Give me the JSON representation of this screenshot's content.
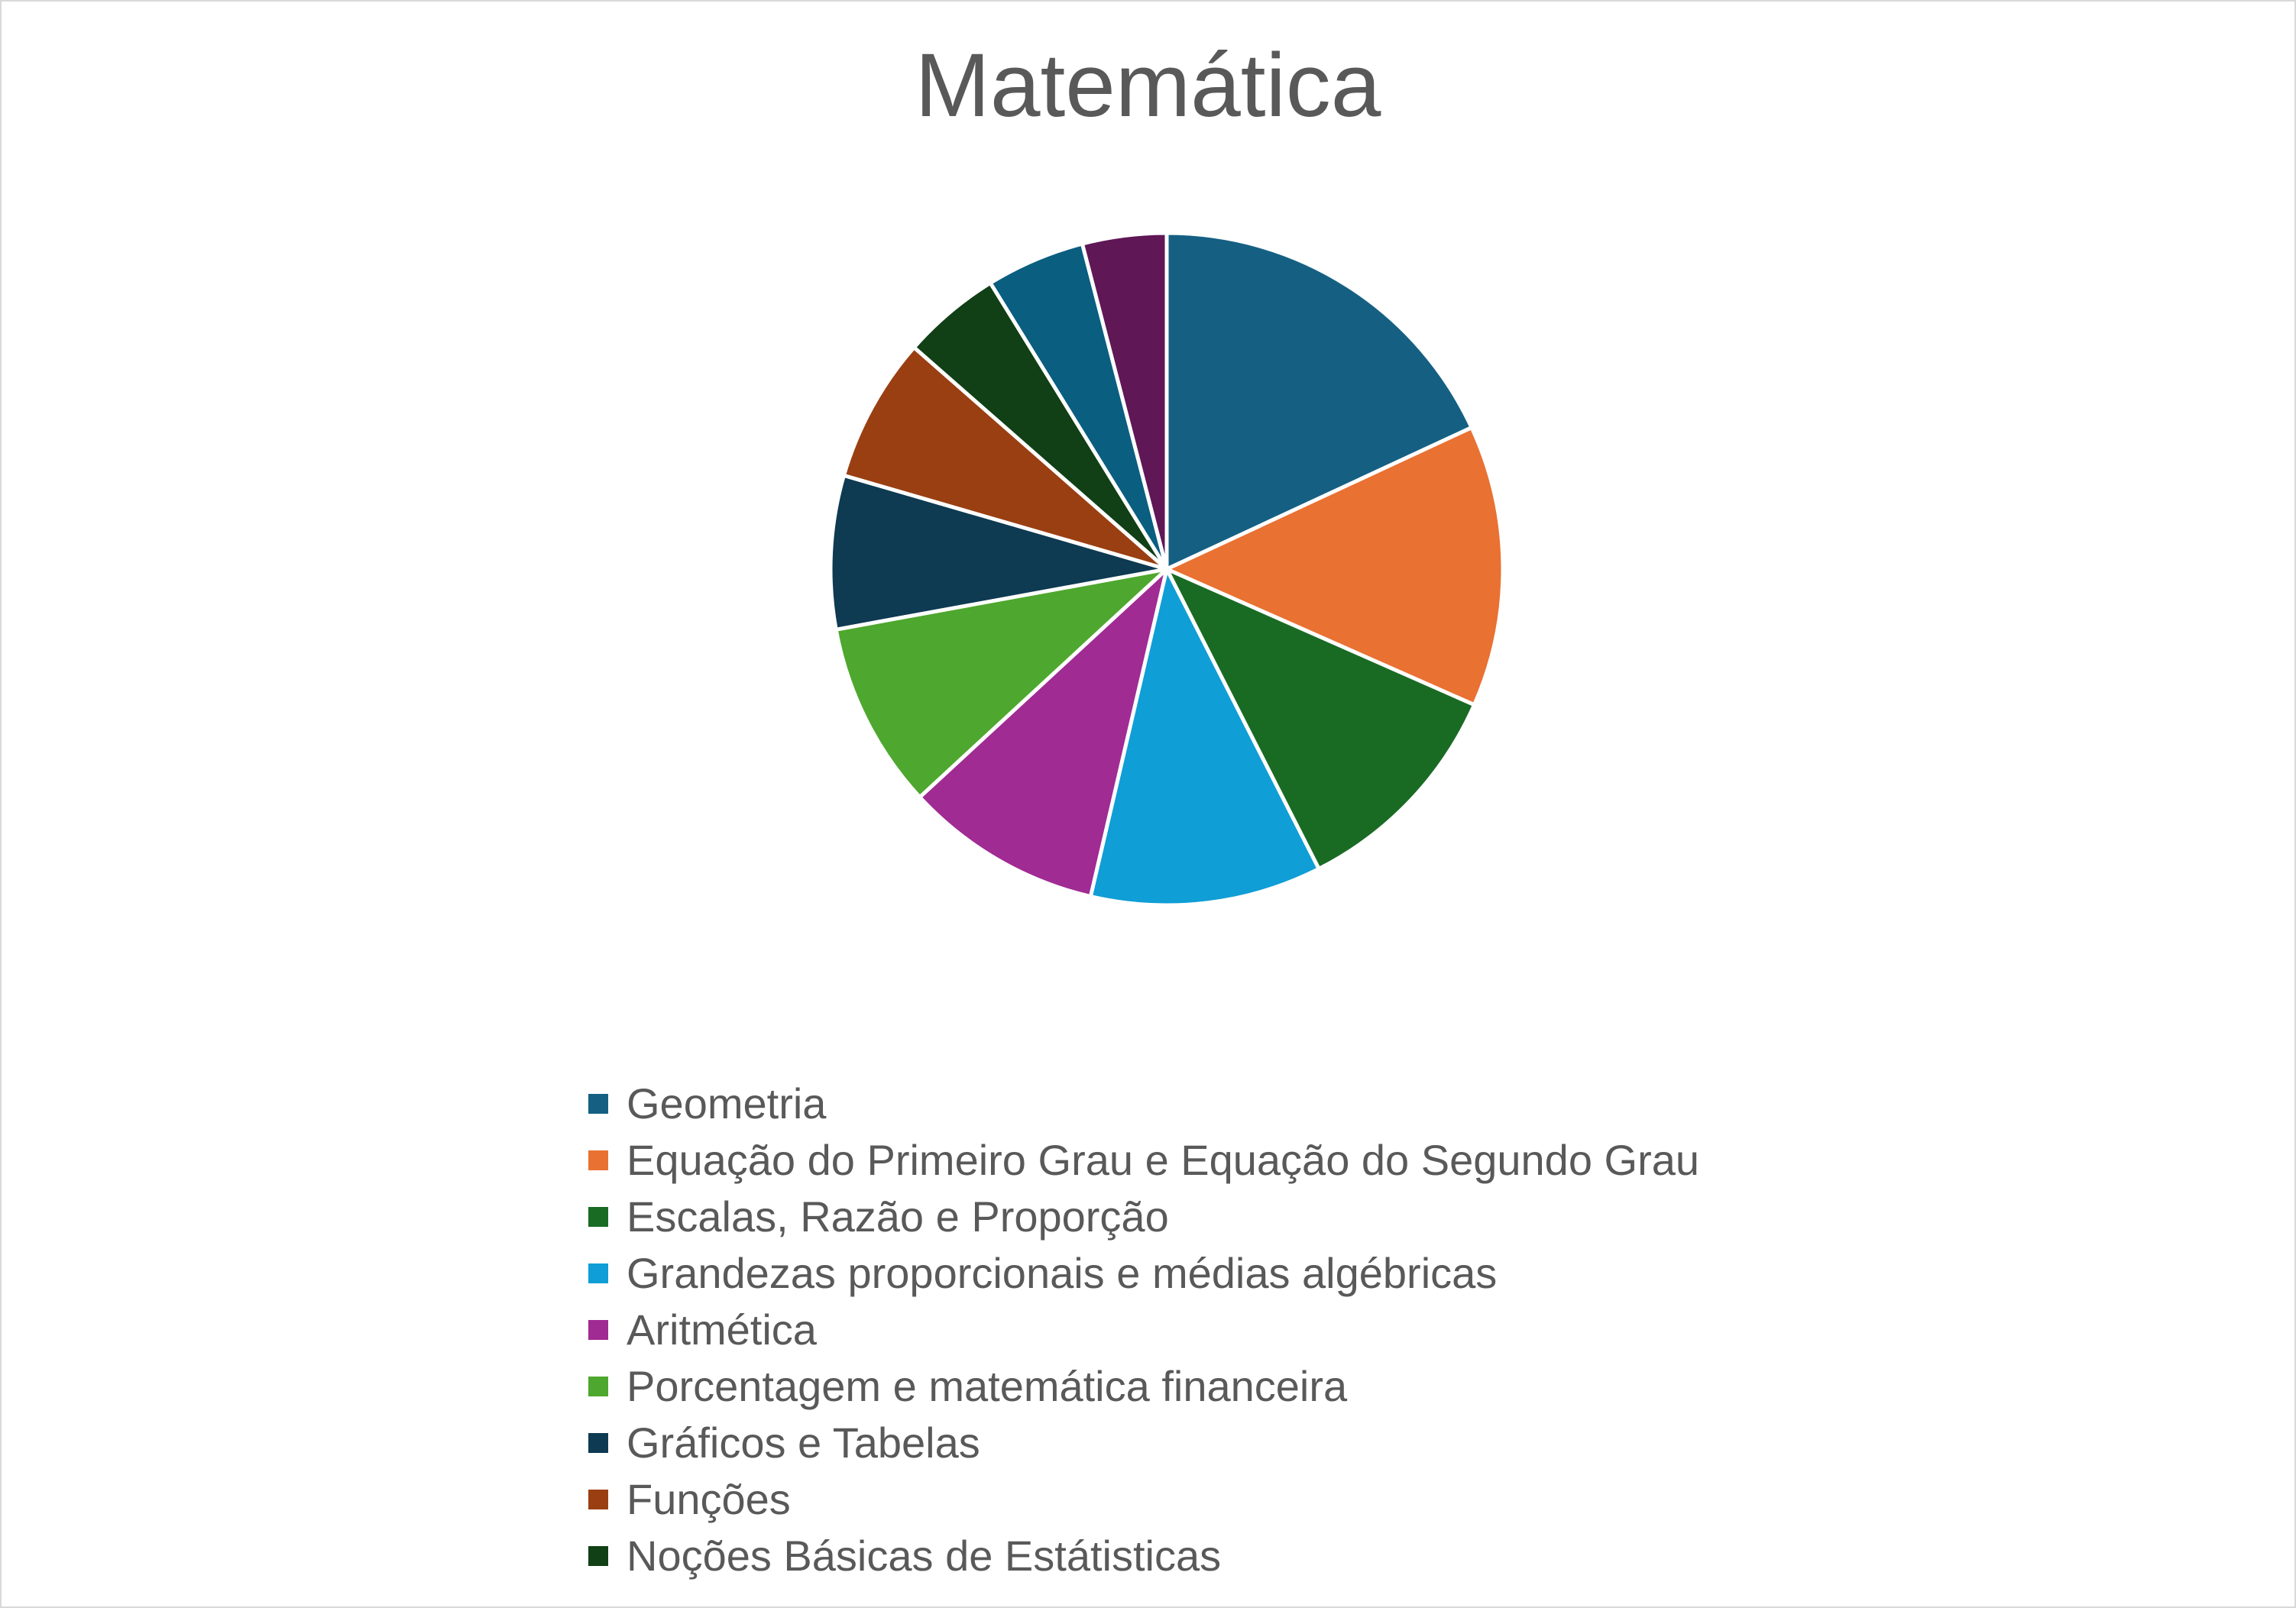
{
  "chart_data": {
    "type": "pie",
    "title": "Matemática",
    "legend_position": "bottom",
    "slices": [
      {
        "label": "Geometria",
        "value": 17.9,
        "color": "#156082"
      },
      {
        "label": "Equação do Primeiro Grau e Equação do Segundo Grau",
        "value": 13.4,
        "color": "#E97132"
      },
      {
        "label": "Escalas, Razão e Proporção",
        "value": 10.8,
        "color": "#196B24"
      },
      {
        "label": "Grandezas proporcionais e médias algébricas",
        "value": 11.0,
        "color": "#0F9ED5"
      },
      {
        "label": "Aritmética",
        "value": 9.4,
        "color": "#A02B93"
      },
      {
        "label": "Porcentagem e matemática financeira",
        "value": 8.9,
        "color": "#4EA72E"
      },
      {
        "label": "Gráficos e Tabelas",
        "value": 7.3,
        "color": "#0E3A52"
      },
      {
        "label": "Funções",
        "value": 6.9,
        "color": "#9A3F12"
      },
      {
        "label": "Noções Básicas de Estátisticas",
        "value": 4.7,
        "color": "#113F16"
      },
      {
        "label": "",
        "value": 4.7,
        "color": "#0A5E80"
      },
      {
        "label": "",
        "value": 4.0,
        "color": "#5F1756"
      }
    ]
  }
}
